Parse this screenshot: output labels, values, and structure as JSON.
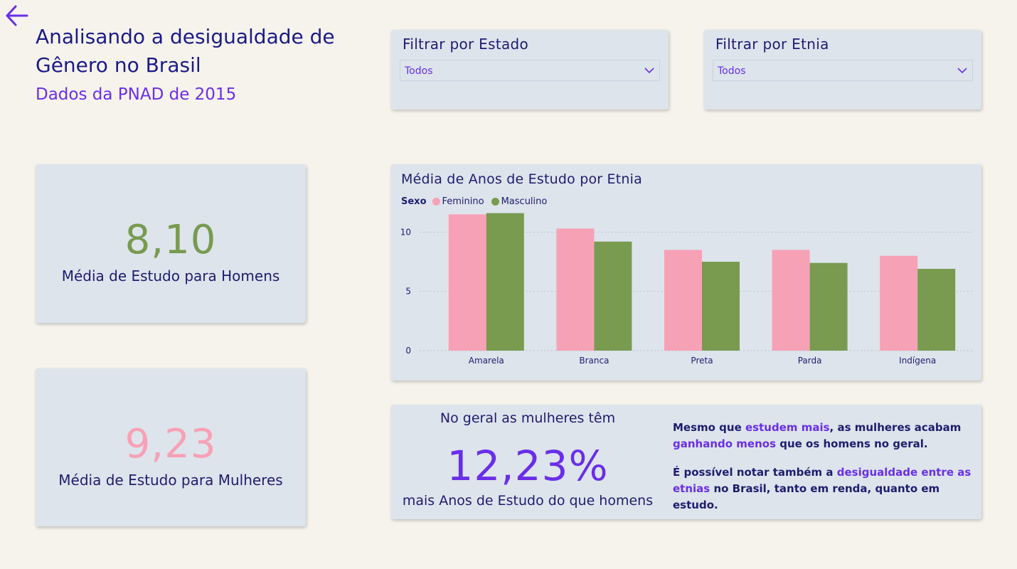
{
  "header": {
    "title": "Analisando a desigualdade de Gênero no Brasil",
    "subtitle": "Dados da PNAD de 2015"
  },
  "filters": {
    "estado": {
      "label": "Filtrar por Estado",
      "value": "Todos"
    },
    "etnia": {
      "label": "Filtrar por Etnia",
      "value": "Todos"
    }
  },
  "kpis": {
    "homens": {
      "value": "8,10",
      "label": "Média de Estudo para Homens"
    },
    "mulheres": {
      "value": "9,23",
      "label": "Média de Estudo para Mulheres"
    }
  },
  "colors": {
    "feminino": "#f7a1b6",
    "masculino": "#789b4f",
    "accent": "#6a2ee8",
    "navy": "#1d1d6e"
  },
  "chart_data": {
    "type": "bar",
    "title": "Média de Anos de Estudo por Etnia",
    "legend_title": "Sexo",
    "categories": [
      "Amarela",
      "Branca",
      "Preta",
      "Parda",
      "Indígena"
    ],
    "series": [
      {
        "name": "Feminino",
        "values": [
          11.5,
          10.3,
          8.5,
          8.5,
          8.0
        ]
      },
      {
        "name": "Masculino",
        "values": [
          11.6,
          9.2,
          7.5,
          7.4,
          6.9
        ]
      }
    ],
    "yticks": [
      0,
      5,
      10
    ],
    "ylim": [
      0,
      12
    ],
    "xlabel": "",
    "ylabel": ""
  },
  "summary": {
    "top": "No geral as mulheres têm",
    "value": "12,23%",
    "bottom": "mais Anos de Estudo do que homens"
  },
  "notes": {
    "p1_a": "Mesmo que ",
    "p1_b": "estudem mais",
    "p1_c": ", as mulheres acabam ",
    "p1_d": "ganhando menos",
    "p1_e": " que os homens no geral.",
    "p2_a": "É possível notar também a ",
    "p2_b": "desigualdade entre as etnias",
    "p2_c": " no Brasil, tanto em renda, quanto em estudo."
  }
}
